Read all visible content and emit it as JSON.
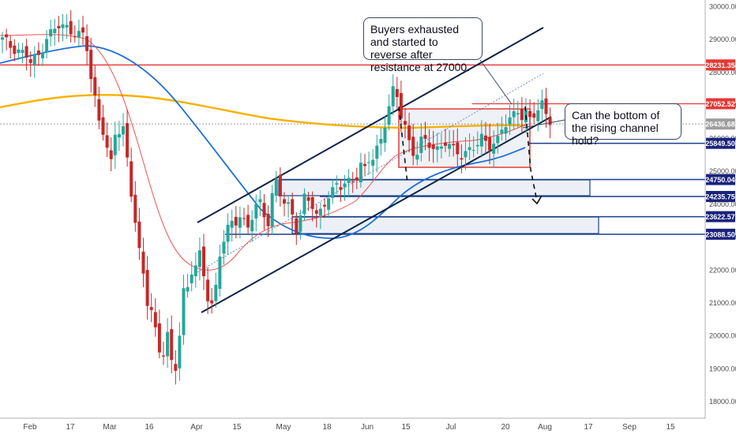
{
  "chart_data": {
    "type": "candlestick",
    "title": "",
    "xlabel": "",
    "ylabel": "",
    "ylim": [
      17600,
      30300
    ],
    "y_ticks": [
      18000,
      19000,
      20000,
      21000,
      22000,
      23000,
      24000,
      25000,
      26000,
      27000,
      28000,
      29000,
      30000
    ],
    "y_tick_labels": [
      "18000.00",
      "19000.00",
      "20000.00",
      "21000.00",
      "22000.00",
      "23000.00",
      "24000.00",
      "25000.00",
      "26000.00",
      "27000.00",
      "28000.00",
      "29000.00",
      "30000.00"
    ],
    "x_labels": [
      "Feb",
      "17",
      "Mar",
      "16",
      "Apr",
      "15",
      "May",
      "18",
      "Jun",
      "15",
      "Jul",
      "20",
      "Aug",
      "17",
      "Sep",
      "15"
    ],
    "level_labels": [
      {
        "value": 28231.35,
        "label": "28231.35",
        "color": "#e53935"
      },
      {
        "value": 27052.52,
        "label": "27052.52",
        "color": "#e53935"
      },
      {
        "value": 26436.68,
        "label": "26436.68",
        "color": "#9e9e9e"
      },
      {
        "value": 25849.5,
        "label": "25849.50",
        "color": "#1a237e"
      },
      {
        "value": 24750.04,
        "label": "24750.04",
        "color": "#1a237e"
      },
      {
        "value": 24235.75,
        "label": "24235.75",
        "color": "#1a237e"
      },
      {
        "value": 23622.57,
        "label": "23622.57",
        "color": "#1a237e"
      },
      {
        "value": 23088.5,
        "label": "23088.50",
        "color": "#1a237e"
      }
    ],
    "price_path": [
      [
        0,
        29000
      ],
      [
        2,
        28800
      ],
      [
        4,
        28700
      ],
      [
        6,
        28500
      ],
      [
        7,
        28300
      ],
      [
        9,
        28500
      ],
      [
        11,
        29100
      ],
      [
        13,
        29300
      ],
      [
        14,
        29400
      ],
      [
        16,
        29350
      ],
      [
        18,
        29250
      ],
      [
        20,
        29100
      ],
      [
        21,
        28700
      ],
      [
        22,
        27800
      ],
      [
        23,
        27200
      ],
      [
        24,
        26600
      ],
      [
        25,
        26300
      ],
      [
        26,
        25700
      ],
      [
        27,
        25200
      ],
      [
        28,
        26100
      ],
      [
        30,
        26300
      ],
      [
        31,
        25400
      ],
      [
        32,
        24400
      ],
      [
        33,
        23500
      ],
      [
        34,
        22500
      ],
      [
        35,
        21800
      ],
      [
        36,
        21000
      ],
      [
        37,
        20800
      ],
      [
        38,
        20200
      ],
      [
        39,
        19600
      ],
      [
        40,
        19500
      ],
      [
        41,
        20000
      ],
      [
        42,
        19100
      ],
      [
        43,
        19000
      ],
      [
        44,
        20100
      ],
      [
        45,
        21400
      ],
      [
        46,
        21500
      ],
      [
        47,
        22000
      ],
      [
        48,
        22100
      ],
      [
        49,
        22400
      ],
      [
        50,
        21800
      ],
      [
        51,
        21200
      ],
      [
        52,
        21000
      ],
      [
        53,
        21500
      ],
      [
        54,
        22500
      ],
      [
        55,
        22900
      ],
      [
        56,
        23200
      ],
      [
        57,
        23400
      ],
      [
        58,
        23500
      ],
      [
        59,
        23700
      ],
      [
        60,
        23500
      ],
      [
        61,
        23300
      ],
      [
        62,
        23600
      ],
      [
        63,
        23900
      ],
      [
        64,
        24000
      ],
      [
        65,
        23700
      ],
      [
        66,
        23500
      ],
      [
        67,
        24300
      ],
      [
        68,
        24700
      ],
      [
        69,
        24300
      ],
      [
        70,
        24000
      ],
      [
        71,
        23900
      ],
      [
        72,
        23700
      ],
      [
        73,
        23300
      ],
      [
        74,
        23700
      ],
      [
        75,
        24200
      ],
      [
        76,
        24100
      ],
      [
        77,
        23900
      ],
      [
        78,
        23600
      ],
      [
        79,
        23800
      ],
      [
        80,
        24100
      ],
      [
        81,
        24300
      ],
      [
        82,
        24400
      ],
      [
        83,
        24550
      ],
      [
        84,
        24500
      ],
      [
        86,
        24700
      ],
      [
        88,
        24900
      ],
      [
        89,
        25200
      ],
      [
        90,
        25000
      ],
      [
        91,
        25300
      ],
      [
        92,
        25400
      ],
      [
        93,
        25700
      ],
      [
        94,
        26000
      ],
      [
        95,
        26500
      ],
      [
        96,
        27000
      ],
      [
        97,
        27400
      ],
      [
        98,
        27200
      ],
      [
        99,
        26700
      ],
      [
        100,
        26400
      ],
      [
        101,
        25900
      ],
      [
        102,
        25600
      ],
      [
        103,
        25600
      ],
      [
        104,
        25900
      ],
      [
        106,
        25800
      ],
      [
        108,
        25700
      ],
      [
        110,
        25900
      ],
      [
        112,
        25600
      ],
      [
        114,
        25500
      ],
      [
        116,
        25700
      ],
      [
        118,
        25800
      ],
      [
        119,
        25950
      ],
      [
        121,
        25800
      ],
      [
        123,
        26000
      ],
      [
        124,
        26300
      ],
      [
        126,
        26500
      ],
      [
        127,
        26700
      ],
      [
        128,
        26900
      ],
      [
        129,
        26700
      ],
      [
        130,
        26800
      ],
      [
        131,
        26600
      ],
      [
        132,
        26700
      ],
      [
        133,
        26800
      ],
      [
        134,
        27000
      ],
      [
        135,
        26800
      ],
      [
        136,
        26600
      ]
    ]
  },
  "annotations": {
    "note1": "Buyers exhausted and started to reverse after resistance at 27000.",
    "note2": "Can the bottom of the rising channel hold?"
  },
  "colors": {
    "up_candle": "#26a69a",
    "down_candle": "#c62828",
    "ma_fast": "#ef5350",
    "ma_slow": "#1e6fd9",
    "ma_long": "#f6b100",
    "channel": "#0d2347",
    "zone_fill": "#dde4ee"
  }
}
